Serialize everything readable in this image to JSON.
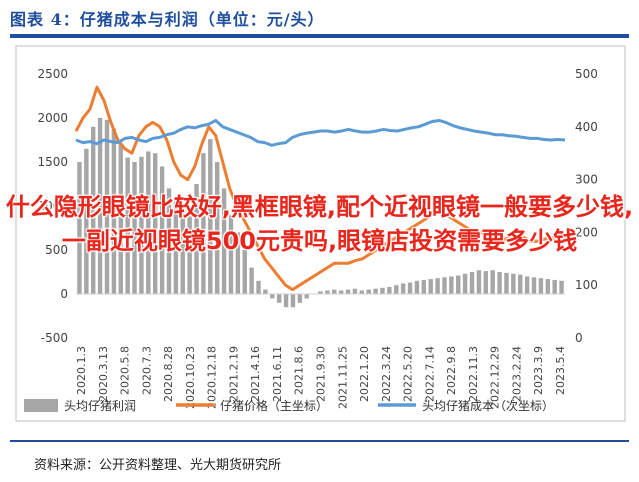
{
  "figure": {
    "title": "图表 4：仔猪成本与利润（单位：元/头）",
    "source": "资料来源：公开资料整理、光大期货研究所"
  },
  "overlay_text": "什么隐形眼镜比较好,黑框眼镜,配个近视眼镜一般要多少钱,一副近视眼镜500元贵吗,眼镜店投资需要多少钱",
  "colors": {
    "bars": "#a6a6a6",
    "price": "#ed7d31",
    "cost": "#5b9bd5",
    "rule": "#1f4e9c",
    "overlay": "#e8261c"
  },
  "chart_data": {
    "type": "bar+line",
    "x_ticks": [
      "2020.1.3",
      "2020.3.13",
      "2020.5.8",
      "2020.7.3",
      "2020.8.28",
      "2020.10.23",
      "2020.12.18",
      "2021.2.19",
      "2021.4.16",
      "2021.6.11",
      "2021.8.6",
      "2021.9.30",
      "2021.11.25",
      "2022.1.20",
      "2022.3.24",
      "2022.5.20",
      "2022.7.14",
      "2022.9.8",
      "2022.11.3",
      "2022.12.29",
      "2023.2.24",
      "2023.3.9",
      "2023.5.4"
    ],
    "y_left": {
      "ticks": [
        -500,
        0,
        500,
        1000,
        1500,
        2000,
        2500
      ],
      "range": [
        -500,
        2500
      ]
    },
    "y_right": {
      "ticks": [
        0,
        100,
        200,
        300,
        400,
        500
      ],
      "range": [
        0,
        500
      ]
    },
    "series": [
      {
        "name": "头均仔猪利润",
        "type": "bar",
        "axis": "left",
        "values": [
          1500,
          1650,
          1900,
          2000,
          1980,
          1880,
          1700,
          1550,
          1500,
          1560,
          1620,
          1600,
          1450,
          1200,
          1050,
          950,
          1000,
          1250,
          1600,
          1760,
          1500,
          1200,
          900,
          700,
          500,
          300,
          150,
          50,
          -50,
          -100,
          -150,
          -150,
          -100,
          -50,
          0,
          30,
          40,
          50,
          40,
          50,
          60,
          40,
          50,
          60,
          70,
          80,
          100,
          120,
          130,
          150,
          160,
          170,
          180,
          190,
          200,
          210,
          230,
          250,
          270,
          260,
          270,
          250,
          240,
          230,
          220,
          200,
          190,
          180,
          170,
          160,
          150
        ]
      },
      {
        "name": "仔猪价格（主坐标）",
        "type": "line",
        "axis": "left",
        "values": [
          1850,
          2000,
          2100,
          2350,
          2200,
          1950,
          1750,
          1650,
          1600,
          1800,
          1900,
          1950,
          1900,
          1750,
          1500,
          1350,
          1300,
          1450,
          1700,
          1900,
          1800,
          1500,
          1200,
          1000,
          850,
          700,
          550,
          400,
          300,
          200,
          100,
          50,
          100,
          150,
          200,
          250,
          300,
          350,
          350,
          350,
          380,
          400,
          450,
          500,
          550,
          600,
          650,
          700,
          750,
          800,
          850,
          900,
          950,
          900,
          850,
          800,
          750,
          700,
          700,
          650,
          600,
          600,
          650,
          700,
          650,
          600,
          600,
          620,
          650,
          600,
          580
        ]
      },
      {
        "name": "头均仔猪成本（次坐标）",
        "type": "line",
        "axis": "right",
        "values": [
          375,
          370,
          372,
          368,
          375,
          372,
          370,
          378,
          380,
          375,
          372,
          378,
          380,
          385,
          388,
          395,
          400,
          398,
          402,
          405,
          412,
          400,
          395,
          390,
          385,
          380,
          372,
          370,
          365,
          368,
          370,
          380,
          385,
          388,
          390,
          392,
          392,
          390,
          392,
          395,
          392,
          390,
          390,
          392,
          395,
          393,
          392,
          395,
          398,
          400,
          405,
          410,
          412,
          408,
          402,
          398,
          395,
          392,
          390,
          388,
          385,
          385,
          383,
          382,
          380,
          378,
          378,
          376,
          375,
          376,
          375
        ]
      }
    ]
  }
}
